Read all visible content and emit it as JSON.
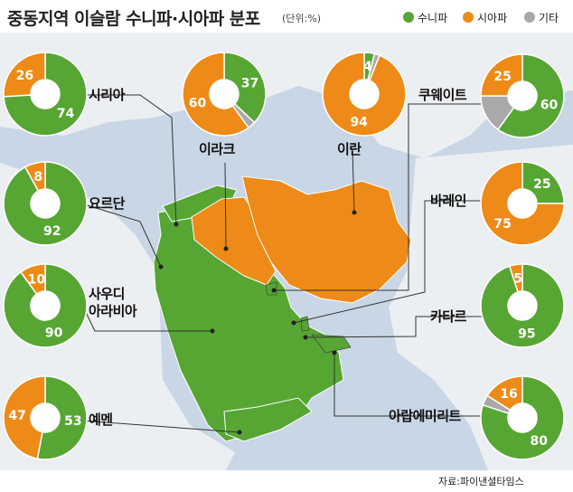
{
  "title": "중동지역 이슬람 수니파·시아파 분포",
  "unit": "(단위:%)",
  "source": "자료:파이낸셜타임스",
  "colors": {
    "sunni": "#57a634",
    "shia": "#ee8a17",
    "other": "#a9a9a9",
    "sea": "#c9d6e6",
    "land": "#eceff2"
  },
  "legend": [
    {
      "name": "수니파",
      "color": "#57a634"
    },
    {
      "name": "시아파",
      "color": "#ee8a17"
    },
    {
      "name": "기타",
      "color": "#a9a9a9"
    }
  ],
  "chart_data": {
    "type": "pie",
    "title": "중동지역 이슬람 수니파·시아파 분포",
    "unit": "%",
    "series_names": [
      "수니파",
      "시아파",
      "기타"
    ],
    "countries": [
      {
        "name": "시리아",
        "sunni": 74,
        "shia": 26,
        "other": 0
      },
      {
        "name": "이라크",
        "sunni": 37,
        "shia": 60,
        "other": 3
      },
      {
        "name": "이란",
        "sunni": 4,
        "shia": 94,
        "other": 2
      },
      {
        "name": "쿠웨이트",
        "sunni": 60,
        "shia": 25,
        "other": 15
      },
      {
        "name": "요르단",
        "sunni": 92,
        "shia": 8,
        "other": 0
      },
      {
        "name": "바레인",
        "sunni": 25,
        "shia": 75,
        "other": 0
      },
      {
        "name": "사우디 아라비아",
        "sunni": 90,
        "shia": 10,
        "other": 0
      },
      {
        "name": "카타르",
        "sunni": 95,
        "shia": 5,
        "other": 0
      },
      {
        "name": "예멘",
        "sunni": 53,
        "shia": 47,
        "other": 0
      },
      {
        "name": "아랍에미리트",
        "sunni": 80,
        "shia": 16,
        "other": 4
      }
    ],
    "labels": {
      "시리아": [
        "74",
        "26"
      ],
      "이라크": [
        "37",
        "60"
      ],
      "이란": [
        "4",
        "94"
      ],
      "쿠웨이트": [
        "60",
        "25"
      ],
      "요르단": [
        "92",
        "8"
      ],
      "바레인": [
        "25",
        "75"
      ],
      "사우디 아라비아": [
        "90",
        "10"
      ],
      "카타르": [
        "95",
        "5"
      ],
      "예멘": [
        "53",
        "47"
      ],
      "아랍에미리트": [
        "80",
        "16"
      ]
    }
  }
}
